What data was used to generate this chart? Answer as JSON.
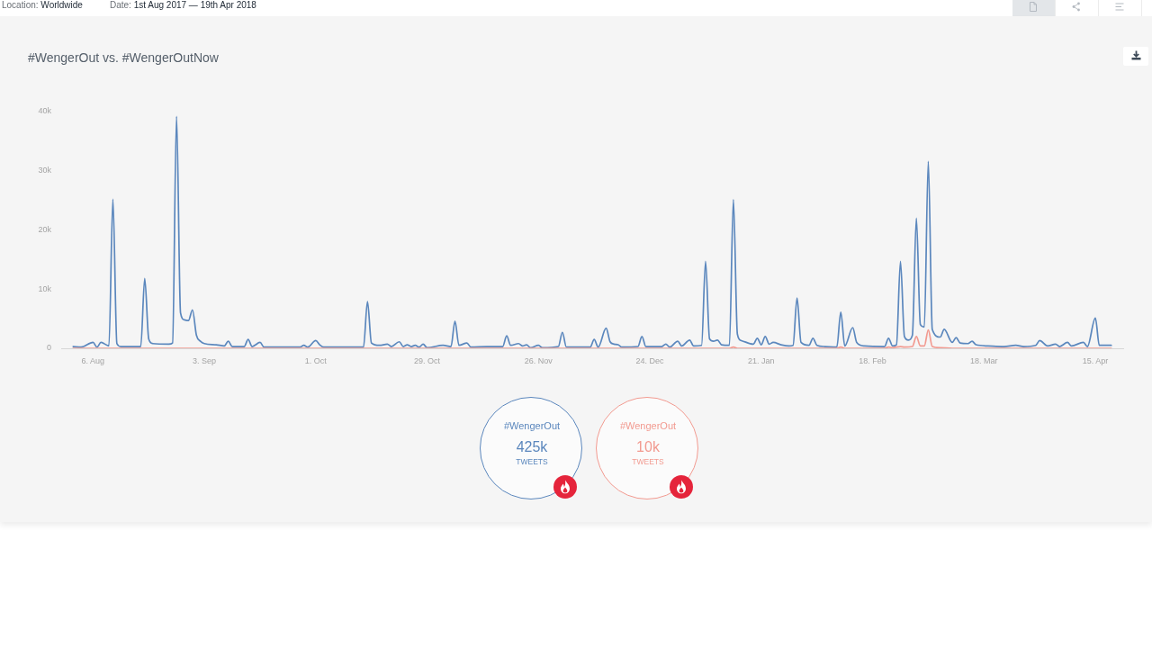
{
  "chart_data": {
    "type": "line",
    "title": "#WengerOut vs. #WengerOutNow",
    "annotations": [
      "Location: Worldwide",
      "Date: 1st Aug 2017 — 19th Apr 2018",
      "425k",
      "TWEETS",
      "10k",
      "TWEETS"
    ],
    "x": [
      "2017-08-01",
      "2017-08-03",
      "2017-08-06",
      "2017-08-07",
      "2017-08-08",
      "2017-08-10",
      "2017-08-11",
      "2017-08-12",
      "2017-08-13",
      "2017-08-18",
      "2017-08-19",
      "2017-08-20",
      "2017-08-21",
      "2017-08-25",
      "2017-08-26",
      "2017-08-27",
      "2017-08-28",
      "2017-08-29",
      "2017-08-30",
      "2017-08-31",
      "2017-09-01",
      "2017-09-02",
      "2017-09-03",
      "2017-09-06",
      "2017-09-08",
      "2017-09-09",
      "2017-09-10",
      "2017-09-13",
      "2017-09-14",
      "2017-09-15",
      "2017-09-17",
      "2017-09-18",
      "2017-09-23",
      "2017-09-27",
      "2017-09-28",
      "2017-09-29",
      "2017-10-01",
      "2017-10-02",
      "2017-10-03",
      "2017-10-08",
      "2017-10-13",
      "2017-10-14",
      "2017-10-15",
      "2017-10-17",
      "2017-10-19",
      "2017-10-20",
      "2017-10-22",
      "2017-10-23",
      "2017-10-24",
      "2017-10-25",
      "2017-10-26",
      "2017-10-27",
      "2017-10-28",
      "2017-10-29",
      "2017-11-02",
      "2017-11-04",
      "2017-11-05",
      "2017-11-06",
      "2017-11-08",
      "2017-11-09",
      "2017-11-13",
      "2017-11-17",
      "2017-11-18",
      "2017-11-19",
      "2017-11-21",
      "2017-11-22",
      "2017-11-23",
      "2017-11-24",
      "2017-11-26",
      "2017-11-27",
      "2017-12-01",
      "2017-12-02",
      "2017-12-03",
      "2017-12-09",
      "2017-12-10",
      "2017-12-11",
      "2017-12-13",
      "2017-12-14",
      "2017-12-15",
      "2017-12-16",
      "2017-12-17",
      "2017-12-21",
      "2017-12-22",
      "2017-12-23",
      "2017-12-27",
      "2017-12-28",
      "2017-12-29",
      "2017-12-31",
      "2018-01-01",
      "2018-01-03",
      "2018-01-04",
      "2018-01-06",
      "2018-01-07",
      "2018-01-08",
      "2018-01-09",
      "2018-01-10",
      "2018-01-11",
      "2018-01-13",
      "2018-01-14",
      "2018-01-15",
      "2018-01-16",
      "2018-01-19",
      "2018-01-20",
      "2018-01-21",
      "2018-01-22",
      "2018-01-23",
      "2018-01-24",
      "2018-01-26",
      "2018-01-28",
      "2018-01-29",
      "2018-01-30",
      "2018-01-31",
      "2018-02-02",
      "2018-02-03",
      "2018-02-04",
      "2018-02-06",
      "2018-02-09",
      "2018-02-10",
      "2018-02-11",
      "2018-02-13",
      "2018-02-14",
      "2018-02-16",
      "2018-02-21",
      "2018-02-22",
      "2018-02-23",
      "2018-02-24",
      "2018-02-25",
      "2018-02-26",
      "2018-02-27",
      "2018-02-28",
      "2018-03-01",
      "2018-03-02",
      "2018-03-03",
      "2018-03-04",
      "2018-03-05",
      "2018-03-07",
      "2018-03-08",
      "2018-03-10",
      "2018-03-11",
      "2018-03-12",
      "2018-03-14",
      "2018-03-15",
      "2018-03-16",
      "2018-03-19",
      "2018-03-23",
      "2018-03-26",
      "2018-03-28",
      "2018-03-31",
      "2018-04-01",
      "2018-04-03",
      "2018-04-05",
      "2018-04-06",
      "2018-04-08",
      "2018-04-09",
      "2018-04-12",
      "2018-04-13",
      "2018-04-15",
      "2018-04-16",
      "2018-04-19"
    ],
    "series": [
      {
        "name": "#WengerOut",
        "color": "#5b87bd",
        "values": [
          300,
          200,
          1000,
          200,
          1000,
          400,
          25200,
          800,
          300,
          300,
          11800,
          1600,
          800,
          700,
          900,
          39200,
          6000,
          4800,
          4700,
          6500,
          2200,
          1200,
          800,
          600,
          400,
          1200,
          300,
          300,
          1500,
          300,
          1000,
          200,
          200,
          200,
          500,
          200,
          1300,
          600,
          200,
          200,
          200,
          7900,
          900,
          500,
          700,
          300,
          1100,
          300,
          600,
          300,
          500,
          200,
          700,
          100,
          500,
          300,
          4600,
          500,
          900,
          200,
          300,
          300,
          2100,
          500,
          800,
          400,
          600,
          100,
          500,
          100,
          300,
          2700,
          200,
          200,
          1500,
          200,
          3400,
          1100,
          700,
          600,
          200,
          300,
          2000,
          300,
          300,
          700,
          200,
          1200,
          400,
          1400,
          400,
          500,
          14700,
          1600,
          1200,
          1400,
          600,
          500,
          25100,
          2400,
          1300,
          700,
          1700,
          600,
          2000,
          700,
          1000,
          600,
          400,
          500,
          8500,
          1000,
          500,
          1700,
          500,
          300,
          200,
          6100,
          400,
          3500,
          1000,
          400,
          300,
          1700,
          400,
          600,
          14700,
          2000,
          1400,
          2200,
          22000,
          4000,
          3600,
          31600,
          3200,
          1900,
          3200,
          1000,
          1800,
          900,
          800,
          1200,
          600,
          400,
          300,
          500,
          300,
          500,
          1300,
          400,
          700,
          300,
          1000,
          400,
          1000,
          300,
          5100,
          500,
          500
        ]
      },
      {
        "name": "#WengerOut",
        "color": "#f29a90",
        "x": [
          "2017-08-01",
          "2018-01-13",
          "2018-01-14",
          "2018-01-15",
          "2018-02-09",
          "2018-02-10",
          "2018-02-11",
          "2018-02-21",
          "2018-02-22",
          "2018-02-23",
          "2018-02-25",
          "2018-02-26",
          "2018-02-28",
          "2018-03-01",
          "2018-03-02",
          "2018-03-03",
          "2018-03-04",
          "2018-03-05",
          "2018-03-07",
          "2018-03-10",
          "2018-04-19"
        ],
        "values": [
          0,
          0,
          200,
          0,
          0,
          200,
          0,
          0,
          200,
          100,
          300,
          200,
          300,
          2000,
          400,
          400,
          3100,
          300,
          100,
          0,
          0
        ]
      }
    ],
    "xlim": [
      "2017-07-29",
      "2018-04-22"
    ],
    "xticks": [
      {
        "value": "2017-08-06",
        "label": "6. Aug"
      },
      {
        "value": "2017-09-03",
        "label": "3. Sep"
      },
      {
        "value": "2017-10-01",
        "label": "1. Oct"
      },
      {
        "value": "2017-10-29",
        "label": "29. Oct"
      },
      {
        "value": "2017-11-26",
        "label": "26. Nov"
      },
      {
        "value": "2017-12-24",
        "label": "24. Dec"
      },
      {
        "value": "2018-01-21",
        "label": "21. Jan"
      },
      {
        "value": "2018-02-18",
        "label": "18. Feb"
      },
      {
        "value": "2018-03-18",
        "label": "18. Mar"
      },
      {
        "value": "2018-04-15",
        "label": "15. Apr"
      }
    ],
    "ylim": [
      0,
      40000
    ],
    "yticks": [
      0,
      {
        "value": 10000,
        "label": "10k"
      },
      {
        "value": 20000,
        "label": "20k"
      },
      {
        "value": 30000,
        "label": "30k"
      },
      {
        "value": 40000,
        "label": "40k"
      }
    ],
    "legend": "bottom"
  }
}
